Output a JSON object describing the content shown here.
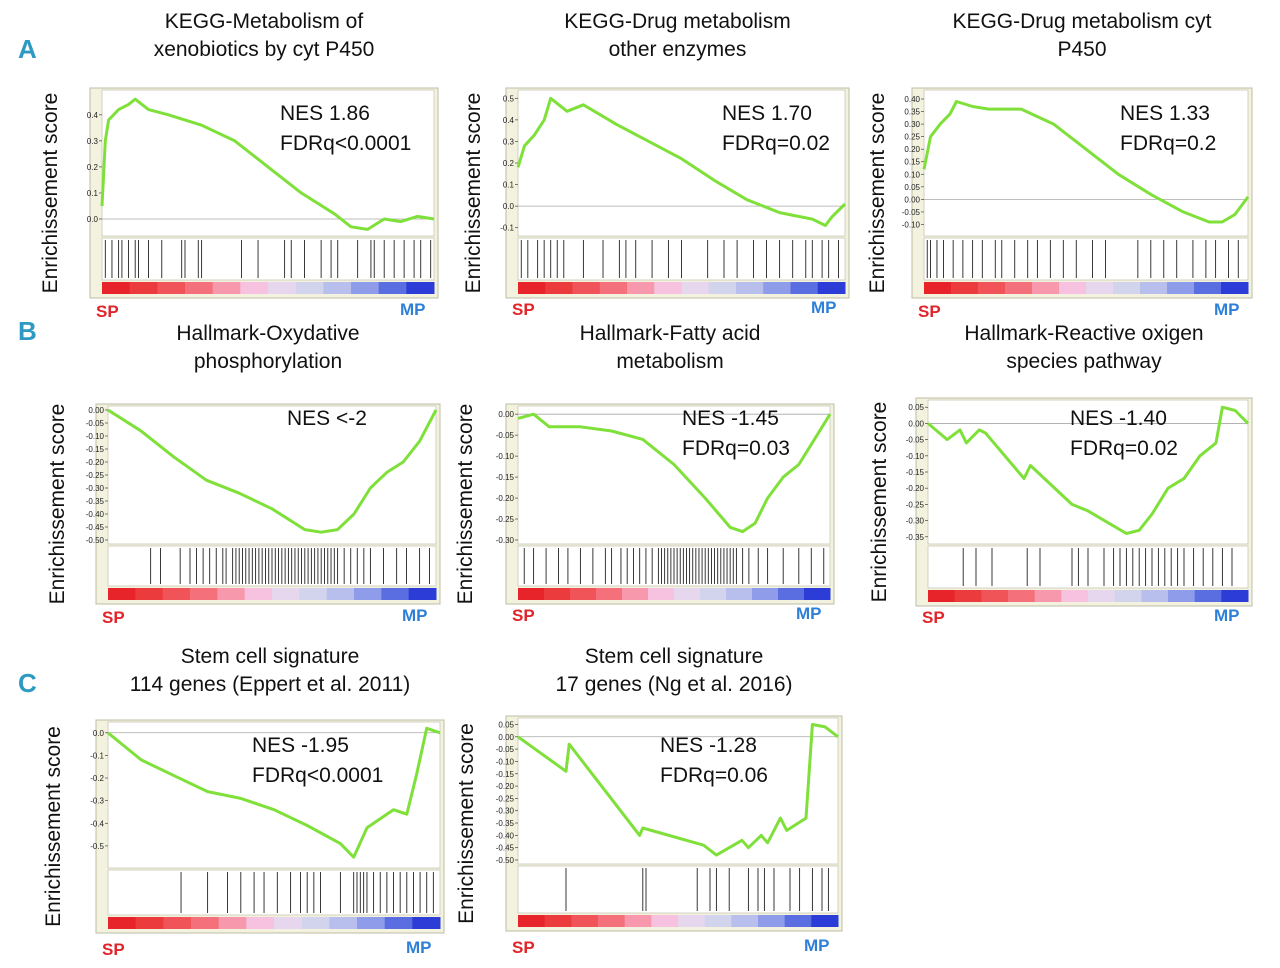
{
  "section_labels": [
    "A",
    "B",
    "C"
  ],
  "colors": {
    "curve": "#7fe03a",
    "frame_bg": "#f2f2de",
    "sp_label": "#e0252b",
    "mp_label": "#2e7fd8",
    "section_label": "#2e9ac4"
  },
  "chart_data": [
    {
      "type": "line",
      "section": "A",
      "title": [
        "KEGG-Metabolism of",
        "xenobiotics by cyt P450"
      ],
      "ylabel": "Enrichissement score",
      "ylim": [
        -0.05,
        0.48
      ],
      "yticks": [
        0.0,
        0.1,
        0.2,
        0.3,
        0.4
      ],
      "ytick_labels": [
        "0.0",
        "0.1",
        "0.2",
        "0.3",
        "0.4"
      ],
      "annotation": [
        "NES 1.86",
        "FDRq<0.0001"
      ],
      "left_label": "SP",
      "right_label": "MP",
      "x": [
        0,
        0.01,
        0.02,
        0.05,
        0.08,
        0.1,
        0.14,
        0.2,
        0.3,
        0.4,
        0.5,
        0.6,
        0.7,
        0.75,
        0.8,
        0.85,
        0.9,
        0.95,
        1.0
      ],
      "y": [
        0.05,
        0.3,
        0.38,
        0.42,
        0.44,
        0.46,
        0.42,
        0.4,
        0.36,
        0.3,
        0.2,
        0.1,
        0.02,
        -0.03,
        -0.04,
        0.0,
        -0.01,
        0.01,
        0.0
      ],
      "hits": [
        0.01,
        0.03,
        0.05,
        0.06,
        0.08,
        0.1,
        0.11,
        0.14,
        0.18,
        0.24,
        0.25,
        0.29,
        0.3,
        0.42,
        0.47,
        0.55,
        0.57,
        0.61,
        0.66,
        0.69,
        0.71,
        0.77,
        0.81,
        0.82,
        0.85,
        0.88,
        0.91,
        0.94,
        0.96,
        0.99
      ]
    },
    {
      "type": "line",
      "section": "A",
      "title": [
        "KEGG-Drug metabolism",
        "other enzymes"
      ],
      "ylabel": "Enrichissement score",
      "ylim": [
        -0.12,
        0.52
      ],
      "yticks": [
        -0.1,
        0.0,
        0.1,
        0.2,
        0.3,
        0.4,
        0.5
      ],
      "ytick_labels": [
        "-0.1",
        "0.0",
        "0.1",
        "0.2",
        "0.3",
        "0.4",
        "0.5"
      ],
      "annotation": [
        "NES 1.70",
        "FDRq=0.02"
      ],
      "left_label": "SP",
      "right_label": "MP",
      "x": [
        0,
        0.02,
        0.05,
        0.08,
        0.1,
        0.15,
        0.2,
        0.3,
        0.4,
        0.5,
        0.6,
        0.7,
        0.8,
        0.9,
        0.94,
        0.96,
        1.0
      ],
      "y": [
        0.18,
        0.28,
        0.33,
        0.4,
        0.5,
        0.44,
        0.47,
        0.38,
        0.3,
        0.22,
        0.12,
        0.03,
        -0.03,
        -0.06,
        -0.09,
        -0.05,
        0.01
      ],
      "hits": [
        0.01,
        0.03,
        0.06,
        0.08,
        0.1,
        0.12,
        0.14,
        0.2,
        0.26,
        0.31,
        0.33,
        0.36,
        0.41,
        0.46,
        0.5,
        0.58,
        0.63,
        0.67,
        0.72,
        0.76,
        0.8,
        0.84,
        0.88,
        0.9,
        0.93,
        0.95,
        0.98
      ]
    },
    {
      "type": "line",
      "section": "A",
      "title": [
        "KEGG-Drug metabolism cyt",
        "P450"
      ],
      "ylabel": "Enrichissement score",
      "ylim": [
        -0.13,
        0.42
      ],
      "yticks": [
        -0.1,
        -0.05,
        0.0,
        0.05,
        0.1,
        0.15,
        0.2,
        0.25,
        0.3,
        0.35,
        0.4
      ],
      "ytick_labels": [
        "-0.10",
        "-0.05",
        "0.00",
        "0.05",
        "0.10",
        "0.15",
        "0.20",
        "0.25",
        "0.30",
        "0.35",
        "0.40"
      ],
      "annotation": [
        "NES 1.33",
        "FDRq=0.2"
      ],
      "left_label": "SP",
      "right_label": "MP",
      "x": [
        0,
        0.02,
        0.05,
        0.08,
        0.1,
        0.15,
        0.2,
        0.3,
        0.4,
        0.5,
        0.6,
        0.7,
        0.8,
        0.88,
        0.92,
        0.96,
        1.0
      ],
      "y": [
        0.12,
        0.25,
        0.3,
        0.34,
        0.39,
        0.37,
        0.36,
        0.36,
        0.3,
        0.2,
        0.1,
        0.02,
        -0.05,
        -0.09,
        -0.09,
        -0.06,
        0.01
      ],
      "hits": [
        0.01,
        0.02,
        0.04,
        0.06,
        0.09,
        0.12,
        0.15,
        0.18,
        0.22,
        0.24,
        0.28,
        0.32,
        0.35,
        0.39,
        0.43,
        0.47,
        0.52,
        0.56,
        0.66,
        0.7,
        0.74,
        0.78,
        0.83,
        0.87,
        0.9,
        0.94,
        0.97
      ]
    },
    {
      "type": "line",
      "section": "B",
      "title": [
        "Hallmark-Oxydative",
        "phosphorylation"
      ],
      "ylabel": "Enrichissement score",
      "ylim": [
        -0.5,
        0.0
      ],
      "yticks": [
        0.0,
        -0.05,
        -0.1,
        -0.15,
        -0.2,
        -0.25,
        -0.3,
        -0.35,
        -0.4,
        -0.45,
        -0.5
      ],
      "ytick_labels": [
        "0.00",
        "-0.05",
        "-0.10",
        "-0.15",
        "-0.20",
        "-0.25",
        "-0.30",
        "-0.35",
        "-0.40",
        "-0.45",
        "-0.50"
      ],
      "annotation": [
        "NES <-2"
      ],
      "left_label": "SP",
      "right_label": "MP",
      "x": [
        0,
        0.1,
        0.2,
        0.3,
        0.4,
        0.5,
        0.6,
        0.65,
        0.7,
        0.75,
        0.8,
        0.85,
        0.9,
        0.95,
        1.0
      ],
      "y": [
        0.0,
        -0.08,
        -0.18,
        -0.27,
        -0.32,
        -0.38,
        -0.46,
        -0.47,
        -0.46,
        -0.4,
        -0.3,
        -0.24,
        -0.2,
        -0.12,
        0.0
      ],
      "hits": [
        0.13,
        0.16,
        0.22,
        0.25,
        0.27,
        0.29,
        0.31,
        0.33,
        0.35,
        0.36,
        0.38,
        0.39,
        0.4,
        0.41,
        0.42,
        0.43,
        0.44,
        0.45,
        0.46,
        0.47,
        0.48,
        0.49,
        0.5,
        0.51,
        0.52,
        0.53,
        0.54,
        0.55,
        0.56,
        0.57,
        0.58,
        0.59,
        0.6,
        0.61,
        0.62,
        0.63,
        0.64,
        0.65,
        0.66,
        0.67,
        0.68,
        0.69,
        0.7,
        0.72,
        0.74,
        0.76,
        0.78,
        0.8,
        0.84,
        0.88,
        0.91,
        0.95,
        0.98
      ]
    },
    {
      "type": "line",
      "section": "B",
      "title": [
        "Hallmark-Fatty acid",
        "metabolism"
      ],
      "ylabel": "Enrichissement score",
      "ylim": [
        -0.3,
        0.01
      ],
      "yticks": [
        0.0,
        -0.05,
        -0.1,
        -0.15,
        -0.2,
        -0.25,
        -0.3
      ],
      "ytick_labels": [
        "0.00",
        "-0.05",
        "-0.10",
        "-0.15",
        "-0.20",
        "-0.25",
        "-0.30"
      ],
      "annotation": [
        "NES -1.45",
        "FDRq=0.03"
      ],
      "left_label": "SP",
      "right_label": "MP",
      "x": [
        0,
        0.05,
        0.1,
        0.2,
        0.3,
        0.4,
        0.5,
        0.6,
        0.68,
        0.72,
        0.76,
        0.8,
        0.85,
        0.9,
        0.95,
        1.0
      ],
      "y": [
        -0.01,
        0.0,
        -0.03,
        -0.03,
        -0.04,
        -0.06,
        -0.12,
        -0.2,
        -0.27,
        -0.28,
        -0.26,
        -0.2,
        -0.15,
        -0.12,
        -0.06,
        0.0
      ],
      "hits": [
        0.02,
        0.05,
        0.09,
        0.13,
        0.16,
        0.2,
        0.24,
        0.28,
        0.3,
        0.33,
        0.35,
        0.37,
        0.39,
        0.41,
        0.43,
        0.45,
        0.46,
        0.47,
        0.48,
        0.49,
        0.5,
        0.51,
        0.52,
        0.53,
        0.54,
        0.55,
        0.56,
        0.57,
        0.58,
        0.59,
        0.6,
        0.61,
        0.62,
        0.63,
        0.64,
        0.65,
        0.66,
        0.67,
        0.68,
        0.69,
        0.7,
        0.72,
        0.74,
        0.77,
        0.8,
        0.85,
        0.9,
        0.94,
        0.98
      ]
    },
    {
      "type": "line",
      "section": "B",
      "title": [
        "Hallmark-Reactive oxigen",
        "species pathway"
      ],
      "ylabel": "Enrichissement score",
      "ylim": [
        -0.36,
        0.06
      ],
      "yticks": [
        0.05,
        0.0,
        -0.05,
        -0.1,
        -0.15,
        -0.2,
        -0.25,
        -0.3,
        -0.35
      ],
      "ytick_labels": [
        "0.05",
        "0.00",
        "-0.05",
        "-0.10",
        "-0.15",
        "-0.20",
        "-0.25",
        "-0.30",
        "-0.35"
      ],
      "annotation": [
        "NES -1.40",
        "FDRq=0.02"
      ],
      "left_label": "SP",
      "right_label": "MP",
      "x": [
        0,
        0.06,
        0.1,
        0.12,
        0.16,
        0.18,
        0.3,
        0.32,
        0.45,
        0.5,
        0.62,
        0.66,
        0.7,
        0.75,
        0.8,
        0.85,
        0.9,
        0.92,
        0.96,
        1.0
      ],
      "y": [
        0.0,
        -0.05,
        -0.02,
        -0.06,
        -0.02,
        -0.03,
        -0.17,
        -0.13,
        -0.25,
        -0.27,
        -0.34,
        -0.33,
        -0.28,
        -0.2,
        -0.17,
        -0.1,
        -0.06,
        0.05,
        0.04,
        0.0
      ],
      "hits": [
        0.11,
        0.15,
        0.2,
        0.31,
        0.35,
        0.45,
        0.47,
        0.5,
        0.55,
        0.58,
        0.6,
        0.62,
        0.64,
        0.66,
        0.68,
        0.7,
        0.72,
        0.74,
        0.76,
        0.78,
        0.8,
        0.83,
        0.86,
        0.89,
        0.92,
        0.95
      ]
    },
    {
      "type": "line",
      "section": "C",
      "title": [
        "Stem cell signature",
        "114 genes (Eppert et al. 2011)"
      ],
      "ylabel": "Enrichissement score",
      "ylim": [
        -0.58,
        0.03
      ],
      "yticks": [
        0.0,
        -0.1,
        -0.2,
        -0.3,
        -0.4,
        -0.5
      ],
      "ytick_labels": [
        "0.0",
        "-0.1",
        "-0.2",
        "-0.3",
        "-0.4",
        "-0.5"
      ],
      "annotation": [
        "NES -1.95",
        "FDRq<0.0001"
      ],
      "left_label": "SP",
      "right_label": "MP",
      "x": [
        0,
        0.1,
        0.2,
        0.3,
        0.4,
        0.5,
        0.6,
        0.7,
        0.74,
        0.78,
        0.82,
        0.86,
        0.9,
        0.93,
        0.96,
        1.0
      ],
      "y": [
        0.0,
        -0.12,
        -0.19,
        -0.26,
        -0.29,
        -0.34,
        -0.41,
        -0.49,
        -0.55,
        -0.42,
        -0.38,
        -0.34,
        -0.36,
        -0.18,
        0.02,
        0.0
      ],
      "hits": [
        0.22,
        0.3,
        0.36,
        0.4,
        0.44,
        0.47,
        0.51,
        0.55,
        0.58,
        0.6,
        0.62,
        0.64,
        0.7,
        0.74,
        0.75,
        0.76,
        0.77,
        0.78,
        0.8,
        0.82,
        0.84,
        0.86,
        0.88,
        0.9,
        0.92,
        0.94,
        0.96,
        0.98
      ]
    },
    {
      "type": "line",
      "section": "C",
      "title": [
        "Stem cell signature",
        "17 genes (Ng et al. 2016)"
      ],
      "ylabel": "Enrichissement score",
      "ylim": [
        -0.5,
        0.06
      ],
      "yticks": [
        0.05,
        0.0,
        -0.05,
        -0.1,
        -0.15,
        -0.2,
        -0.25,
        -0.3,
        -0.35,
        -0.4,
        -0.45,
        -0.5
      ],
      "ytick_labels": [
        "0.05",
        "0.00",
        "-0.05",
        "-0.10",
        "-0.15",
        "-0.20",
        "-0.25",
        "-0.30",
        "-0.35",
        "-0.40",
        "-0.45",
        "-0.50"
      ],
      "annotation": [
        "NES -1.28",
        "FDRq=0.06"
      ],
      "left_label": "SP",
      "right_label": "MP",
      "x": [
        0,
        0.15,
        0.16,
        0.38,
        0.39,
        0.58,
        0.62,
        0.66,
        0.7,
        0.72,
        0.76,
        0.78,
        0.82,
        0.84,
        0.9,
        0.92,
        0.96,
        1.0
      ],
      "y": [
        0.0,
        -0.14,
        -0.03,
        -0.4,
        -0.37,
        -0.44,
        -0.48,
        -0.45,
        -0.42,
        -0.45,
        -0.4,
        -0.43,
        -0.33,
        -0.38,
        -0.33,
        0.05,
        0.04,
        0.0
      ],
      "hits": [
        0.15,
        0.39,
        0.4,
        0.56,
        0.6,
        0.62,
        0.66,
        0.72,
        0.75,
        0.77,
        0.8,
        0.85,
        0.88,
        0.92,
        0.95,
        0.97
      ]
    }
  ]
}
